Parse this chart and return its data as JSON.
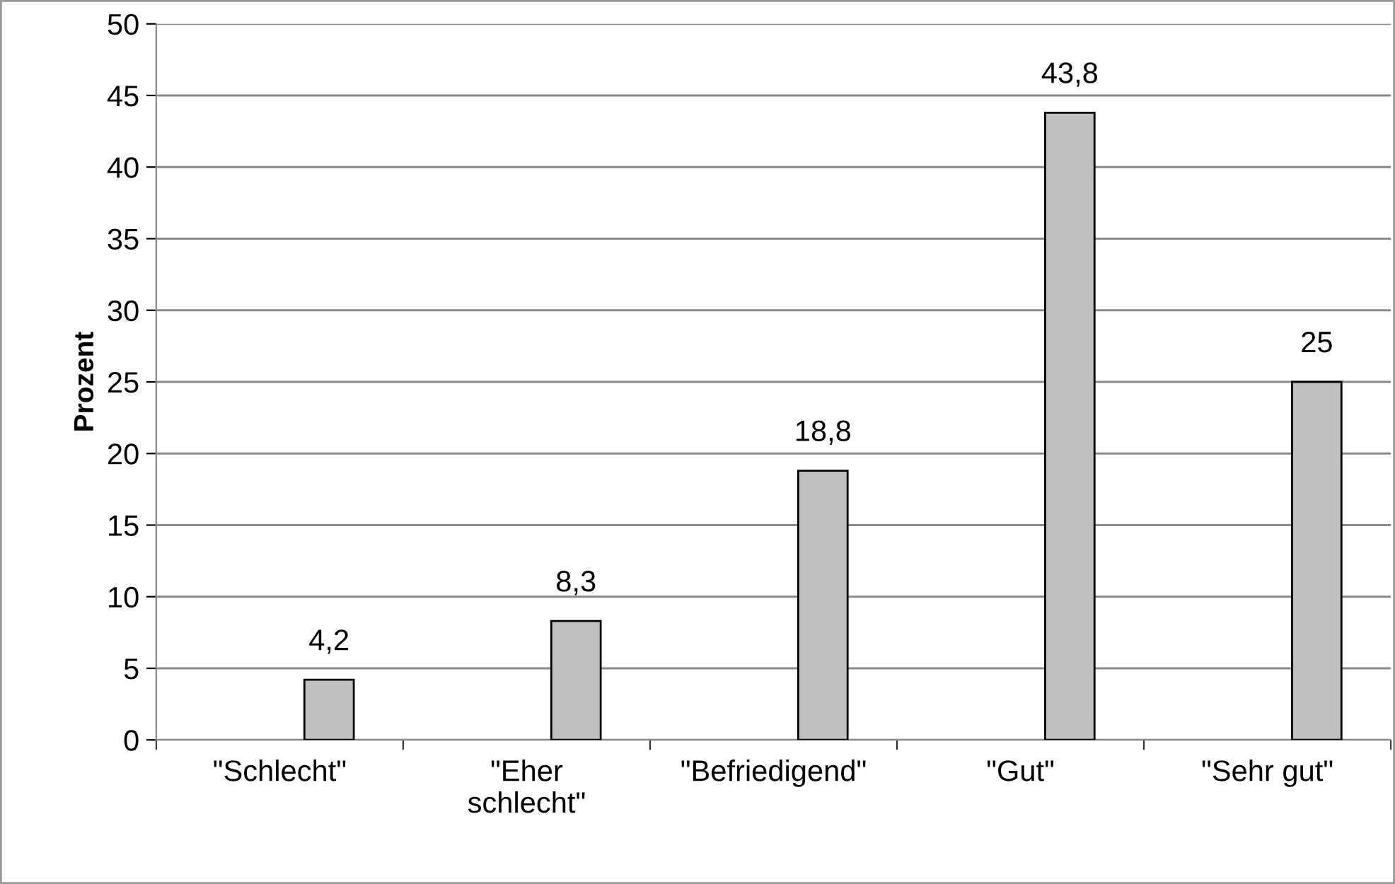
{
  "chart_data": {
    "type": "bar",
    "ylabel": "Prozent",
    "categories": [
      "\"Schlecht\"",
      "\"Eher\nschlecht\"",
      "\"Befriedigend\"",
      "\"Gut\"",
      "\"Sehr gut\""
    ],
    "values": [
      4.2,
      8.3,
      18.8,
      43.8,
      25
    ],
    "value_labels": [
      "4,2",
      "8,3",
      "18,8",
      "43,8",
      "25"
    ],
    "color": "#c0c0c0",
    "ylim": [
      0,
      50
    ],
    "yticks": [
      0,
      5,
      10,
      15,
      20,
      25,
      30,
      35,
      40,
      45,
      50
    ],
    "grid": "y"
  }
}
